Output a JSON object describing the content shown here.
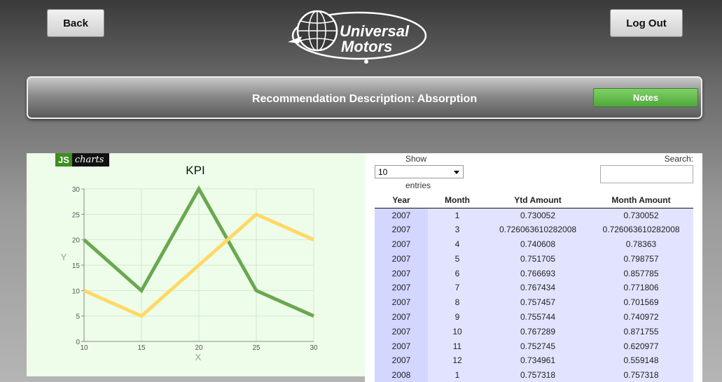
{
  "header": {
    "back_label": "Back",
    "logout_label": "Log Out",
    "logo_line1": "Universal",
    "logo_line2": "Motors"
  },
  "recommendation": {
    "title": "Recommendation Description: Absorption",
    "notes_label": "Notes"
  },
  "chart_logo": {
    "js": "JS",
    "charts": "charts"
  },
  "chart_data": {
    "type": "line",
    "title": "KPI",
    "xlabel": "X",
    "ylabel": "Y",
    "xlim": [
      10,
      30
    ],
    "ylim": [
      0,
      30
    ],
    "xticks": [
      10,
      15,
      20,
      25,
      30
    ],
    "yticks": [
      0,
      5,
      10,
      15,
      20,
      25,
      30
    ],
    "grid": true,
    "series": [
      {
        "color": "#6aa84f",
        "x": [
          10,
          15,
          20,
          25,
          30
        ],
        "y": [
          20,
          10,
          30,
          10,
          5
        ]
      },
      {
        "color": "#ffd966",
        "x": [
          10,
          15,
          20,
          25,
          30
        ],
        "y": [
          10,
          5,
          15,
          25,
          20
        ]
      }
    ]
  },
  "table_controls": {
    "show_label": "Show",
    "entries_value": "10",
    "entries_label": "entries",
    "search_label": "Search:",
    "search_value": ""
  },
  "table": {
    "columns": [
      "Year",
      "Month",
      "Ytd Amount",
      "Month Amount"
    ],
    "rows": [
      [
        "2007",
        "1",
        "0.730052",
        "0.730052"
      ],
      [
        "2007",
        "3",
        "0.726063610282008",
        "0.726063610282008"
      ],
      [
        "2007",
        "4",
        "0.740608",
        "0.78363"
      ],
      [
        "2007",
        "5",
        "0.751705",
        "0.798757"
      ],
      [
        "2007",
        "6",
        "0.766693",
        "0.857785"
      ],
      [
        "2007",
        "7",
        "0.767434",
        "0.771806"
      ],
      [
        "2007",
        "8",
        "0.757457",
        "0.701569"
      ],
      [
        "2007",
        "9",
        "0.755744",
        "0.740972"
      ],
      [
        "2007",
        "10",
        "0.767289",
        "0.871755"
      ],
      [
        "2007",
        "11",
        "0.752745",
        "0.620977"
      ],
      [
        "2007",
        "12",
        "0.734961",
        "0.559148"
      ],
      [
        "2008",
        "1",
        "0.757318",
        "0.757318"
      ]
    ]
  }
}
